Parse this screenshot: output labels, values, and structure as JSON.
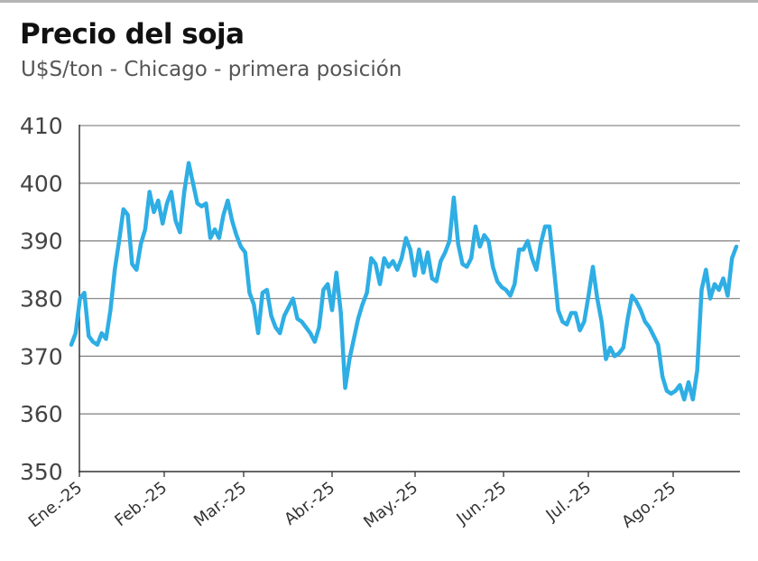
{
  "chart_data": {
    "type": "line",
    "title": "Precio del soja",
    "subtitle": "U$S/ton - Chicago - primera posición",
    "xlabel": "",
    "ylabel": "",
    "ylim": [
      350,
      410
    ],
    "yticks": [
      350,
      360,
      370,
      380,
      390,
      400,
      410
    ],
    "grid": "horizontal",
    "color": "#2eaee4",
    "xtick_labels": [
      "Ene.-25",
      "Feb.-25",
      "Mar.-25",
      "Abr.-25",
      "May.-25",
      "Jun.-25",
      "Jul.-25",
      "Ago.-25"
    ],
    "series": [
      {
        "values": [
          372,
          374,
          380,
          381,
          373.5,
          372.5,
          372,
          374,
          373,
          378,
          385,
          390,
          395.5,
          394.5,
          386,
          385,
          389.5,
          392,
          398.5,
          395,
          397,
          393,
          396.5,
          398.5,
          393.5,
          391.5,
          398.5,
          403.5,
          400,
          396.5,
          396,
          396.5,
          390.5,
          392,
          390.5,
          394.5,
          397,
          393.5,
          391,
          389,
          388,
          381,
          379,
          374,
          381,
          381.5,
          377,
          375,
          374,
          377,
          378.5,
          380,
          376.5,
          376,
          375,
          374,
          372.5,
          375,
          381.5,
          382.5,
          378,
          384.5,
          377.5,
          364.5,
          369.5,
          373,
          376.5,
          379,
          381,
          387,
          386,
          382.5,
          387,
          385.5,
          386.5,
          385,
          387,
          390.5,
          388.5,
          384,
          388.5,
          384.5,
          388,
          383.5,
          383,
          386.5,
          388,
          390,
          397.5,
          389.5,
          386,
          385.5,
          387,
          392.5,
          389,
          391,
          390,
          385.5,
          383,
          382,
          381.5,
          380.5,
          382.5,
          388.5,
          388.5,
          390,
          387,
          385,
          389.5,
          392.5,
          392.5,
          385.5,
          378,
          376,
          375.5,
          377.5,
          377.5,
          374.5,
          376,
          380.5,
          385.5,
          380,
          376,
          369.5,
          371.5,
          370,
          370.5,
          371.5,
          376.5,
          380.5,
          379.5,
          378,
          376,
          375,
          373.5,
          372,
          366.5,
          364,
          363.5,
          364,
          365,
          362.5,
          365.5,
          362.5,
          367.5,
          381.5,
          385,
          380,
          382.5,
          381.5,
          383.5,
          380.5,
          387,
          389
        ]
      }
    ]
  }
}
